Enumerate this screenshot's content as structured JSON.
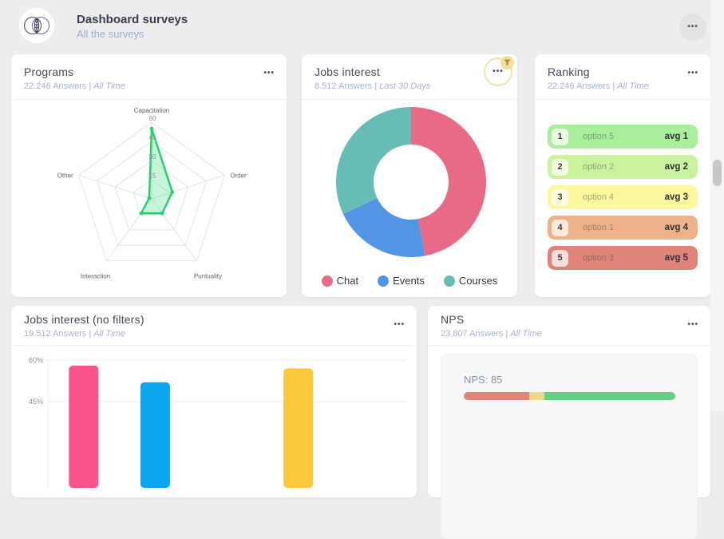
{
  "icons": {
    "ellipsis": "•••",
    "filter": "funnel",
    "logo": "leaf-venn"
  },
  "colors": {
    "page_bg": "#ededee",
    "card_bg": "#ffffff",
    "title": "#45495a",
    "subtitle": "#a7b2cf"
  },
  "header": {
    "title": "Dashboard surveys",
    "subtitle": "All the surveys"
  },
  "cards": {
    "programs": {
      "title": "Programs",
      "answers": "22.246 Answers |",
      "range": "All Time"
    },
    "jobs_interest": {
      "title": "Jobs interest",
      "answers": "8.512 Answers |",
      "range": "Last 30 Days"
    },
    "ranking": {
      "title": "Ranking",
      "answers": "22.246 Answers |",
      "range": "All Time",
      "rows": [
        {
          "rank": "1",
          "label": "option 5",
          "value": "avg 1",
          "row_color": "#a9ee9b",
          "badge_color": "#e9fbe2"
        },
        {
          "rank": "2",
          "label": "option 2",
          "value": "avg 2",
          "row_color": "#c9f39d",
          "badge_color": "#f0fbdf"
        },
        {
          "rank": "3",
          "label": "option 4",
          "value": "avg 3",
          "row_color": "#fbf89e",
          "badge_color": "#fefce5"
        },
        {
          "rank": "4",
          "label": "option 1",
          "value": "avg 4",
          "row_color": "#edb28a",
          "badge_color": "#fbe9da"
        },
        {
          "rank": "5",
          "label": "option 3",
          "value": "avg 5",
          "row_color": "#e2837a",
          "badge_color": "#f8dedb"
        }
      ]
    },
    "jobs_interest_no_filters": {
      "title": "Jobs interest (no filters)",
      "answers": "19.512 Answers |",
      "range": "All Time"
    },
    "nps": {
      "title": "NPS",
      "answers": "23.807 Answers |",
      "range": "All Time"
    }
  },
  "chart_data": [
    {
      "id": "programs-radar",
      "type": "radar",
      "title": "Programs",
      "categories": [
        "Capacitation",
        "Order",
        "Puntuality",
        "Interaction",
        "Other"
      ],
      "values": [
        55,
        17,
        14,
        14,
        2
      ],
      "rmax": 60,
      "ticks": [
        15,
        30,
        45,
        60
      ],
      "line_color": "#1fd36a",
      "fill_color": "rgba(31,211,106,0.25)",
      "grid": true
    },
    {
      "id": "jobs-interest-donut",
      "type": "pie",
      "donut": true,
      "title": "Jobs interest",
      "labels": [
        "Chat",
        "Events",
        "Courses"
      ],
      "values_pct": [
        47,
        21,
        32
      ],
      "colors": [
        "#e96a86",
        "#5195e4",
        "#68bcb6"
      ],
      "legend_position": "bottom"
    },
    {
      "id": "jobs-interest-bars",
      "type": "bar",
      "title": "Jobs interest (no filters)",
      "ytick_labels": [
        "60%",
        "45%"
      ],
      "ytick_values": [
        60,
        45
      ],
      "unit": "%",
      "slots": 5,
      "bars": [
        {
          "slot": 0,
          "value": 58,
          "color": "#f9538b"
        },
        {
          "slot": 1,
          "value": 52,
          "color": "#0aa7ee"
        },
        {
          "slot": 3,
          "value": 57,
          "color": "#fdc93c"
        }
      ]
    },
    {
      "id": "nps-gauge",
      "type": "gauge",
      "label": "NPS: 85",
      "value": 85,
      "segments": [
        {
          "pct": 31,
          "color": "#e2837b"
        },
        {
          "pct": 7,
          "color": "#e9d98b"
        },
        {
          "pct": 62,
          "color": "#63cf84"
        }
      ]
    }
  ]
}
